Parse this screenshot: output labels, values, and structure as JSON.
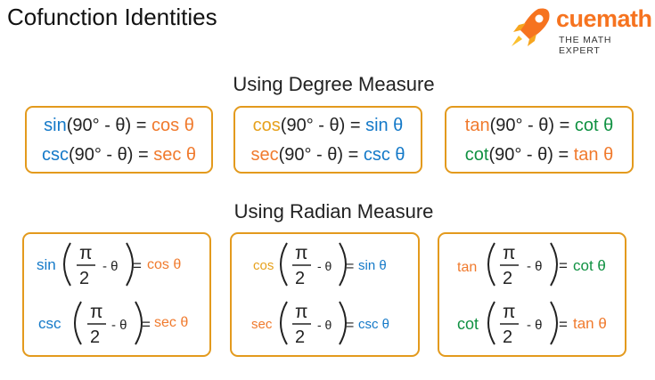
{
  "title": "Cofunction Identities",
  "logo": {
    "brand": "cuemath",
    "tagline": "THE MATH EXPERT"
  },
  "sections": {
    "degree_title": "Using Degree Measure",
    "radian_title": "Using Radian Measure"
  },
  "degree": {
    "box1": [
      {
        "fn": "sin",
        "arg": "(90° - θ) = ",
        "res": "cos θ"
      },
      {
        "fn": "csc",
        "arg": "(90° - θ) = ",
        "res": "sec θ"
      }
    ],
    "box2": [
      {
        "fn": "cos",
        "arg": "(90° - θ) = ",
        "res": "sin θ"
      },
      {
        "fn": "sec",
        "arg": "(90° - θ) = ",
        "res": "csc θ"
      }
    ],
    "box3": [
      {
        "fn": "tan",
        "arg": "(90° - θ) = ",
        "res": "cot θ"
      },
      {
        "fn": "cot",
        "arg": "(90° - θ) = ",
        "res": "tan θ"
      }
    ]
  },
  "radian": {
    "pi": "π",
    "two": "2",
    "minus_theta": "- θ",
    "eq": "=",
    "box1": [
      {
        "fn": "sin",
        "res": "cos θ"
      },
      {
        "fn": "csc",
        "res": "sec θ"
      }
    ],
    "box2": [
      {
        "fn": "cos",
        "res": "sin θ"
      },
      {
        "fn": "sec",
        "res": "csc θ"
      }
    ],
    "box3": [
      {
        "fn": "tan",
        "res": "cot θ"
      },
      {
        "fn": "cot",
        "res": "tan θ"
      }
    ]
  },
  "colors": {
    "border": "#e39a1d",
    "blue": "#1479c8",
    "orange": "#f07a2d",
    "green": "#109142",
    "gold": "#e6a11d"
  }
}
